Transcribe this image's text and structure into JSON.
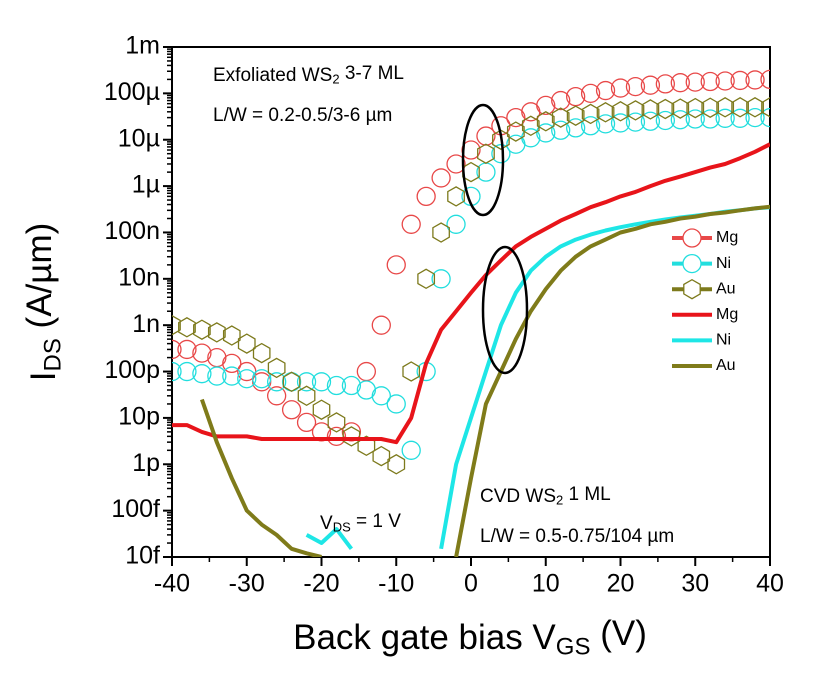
{
  "chart_data": {
    "type": "line",
    "log_y": true,
    "y_label": [
      "I",
      "DS",
      " (A/µm)"
    ],
    "x_label": [
      "Back gate bias V",
      "GS",
      " (V)"
    ],
    "annotations": [
      [
        "Exfoliated WS",
        "2",
        " 3-7 ML"
      ],
      [
        "L/W = 0.2-0.5/3-6 µm"
      ],
      [
        "CVD WS",
        "2",
        " 1 ML"
      ],
      [
        "L/W = 0.5-0.75/104 µm"
      ],
      [
        "V",
        "DS",
        " = 1 V"
      ]
    ],
    "xlim": [
      -40,
      40
    ],
    "xticks": [
      -40,
      -30,
      -20,
      -10,
      0,
      10,
      20,
      30,
      40
    ],
    "ylim": [
      1e-14,
      0.001
    ],
    "yticks": [
      {
        "value": 0.001,
        "label": "1m"
      },
      {
        "value": 0.0001,
        "label": "100µ"
      },
      {
        "value": 1e-05,
        "label": "10µ"
      },
      {
        "value": 1e-06,
        "label": "1µ"
      },
      {
        "value": 1e-07,
        "label": "100n"
      },
      {
        "value": 1e-08,
        "label": "10n"
      },
      {
        "value": 1e-09,
        "label": "1n"
      },
      {
        "value": 1e-10,
        "label": "100p"
      },
      {
        "value": 1e-11,
        "label": "10p"
      },
      {
        "value": 1e-12,
        "label": "1p"
      },
      {
        "value": 1e-13,
        "label": "100f"
      },
      {
        "value": 1e-14,
        "label": "10f"
      }
    ],
    "legend": "right",
    "x": [
      -40,
      -38,
      -36,
      -34,
      -32,
      -30,
      -28,
      -26,
      -24,
      -22,
      -20,
      -18,
      -16,
      -14,
      -12,
      -10,
      -8,
      -6,
      -4,
      -2,
      0,
      2,
      4,
      6,
      8,
      10,
      12,
      14,
      16,
      18,
      20,
      22,
      24,
      26,
      28,
      30,
      32,
      34,
      36,
      38,
      40
    ],
    "series": [
      {
        "name": "Mg",
        "color": "#e84848",
        "style": "open-circle",
        "values": [
          3e-10,
          3e-10,
          2.5e-10,
          2e-10,
          1.5e-10,
          1e-10,
          6e-11,
          3e-11,
          1.5e-11,
          8e-12,
          5e-12,
          4e-12,
          5e-12,
          1e-10,
          1e-09,
          2e-08,
          1.5e-07,
          6e-07,
          1.5e-06,
          3e-06,
          6e-06,
          1.2e-05,
          2e-05,
          3e-05,
          4e-05,
          5.5e-05,
          7e-05,
          8.5e-05,
          0.0001,
          0.000115,
          0.00013,
          0.00014,
          0.00015,
          0.00016,
          0.00017,
          0.000175,
          0.00018,
          0.000185,
          0.00019,
          0.000195,
          0.0002
        ]
      },
      {
        "name": "Ni",
        "color": "#22dede",
        "style": "open-circle",
        "values": [
          1e-10,
          1e-10,
          9e-11,
          8e-11,
          8e-11,
          7e-11,
          7e-11,
          6e-11,
          6e-11,
          6e-11,
          6e-11,
          5e-11,
          5e-11,
          4e-11,
          3e-11,
          2e-11,
          2e-12,
          1e-10,
          1e-08,
          1.5e-07,
          6e-07,
          2e-06,
          5e-06,
          8e-06,
          1.1e-05,
          1.4e-05,
          1.6e-05,
          1.8e-05,
          2e-05,
          2.2e-05,
          2.3e-05,
          2.4e-05,
          2.5e-05,
          2.6e-05,
          2.7e-05,
          2.8e-05,
          2.8e-05,
          2.9e-05,
          2.9e-05,
          3e-05,
          3e-05
        ]
      },
      {
        "name": "Au",
        "color": "#7d7a1c",
        "style": "open-hexagon",
        "values": [
          1e-09,
          9e-10,
          8e-10,
          7e-10,
          6e-10,
          4e-10,
          2.5e-10,
          1.2e-10,
          6e-11,
          3e-11,
          1.5e-11,
          8e-12,
          4e-12,
          2.5e-12,
          1.5e-12,
          1e-12,
          1e-10,
          1e-08,
          1e-07,
          6e-07,
          2e-06,
          5e-06,
          1e-05,
          1.5e-05,
          2e-05,
          2.5e-05,
          3e-05,
          3.3e-05,
          3.6e-05,
          3.9e-05,
          4.1e-05,
          4.3e-05,
          4.5e-05,
          4.6e-05,
          4.7e-05,
          4.8e-05,
          4.9e-05,
          5e-05,
          5e-05,
          5e-05,
          5e-05
        ]
      },
      {
        "name": "Mg",
        "color": "#e8141a",
        "style": "line",
        "values": [
          7e-12,
          7e-12,
          5e-12,
          4e-12,
          4e-12,
          4e-12,
          3.5e-12,
          3.5e-12,
          3.5e-12,
          3.5e-12,
          3.5e-12,
          3.5e-12,
          3.5e-12,
          3.5e-12,
          3.5e-12,
          3e-12,
          1e-11,
          1.5e-10,
          8e-10,
          2e-09,
          5e-09,
          1.2e-08,
          2.5e-08,
          5e-08,
          8e-08,
          1.2e-07,
          1.8e-07,
          2.5e-07,
          3.5e-07,
          4.5e-07,
          6e-07,
          7.5e-07,
          1e-06,
          1.3e-06,
          1.6e-06,
          2e-06,
          2.5e-06,
          3e-06,
          4e-06,
          5.5e-06,
          8e-06
        ]
      },
      {
        "name": "Ni",
        "color": "#1ee6e6",
        "style": "line",
        "values": [
          null,
          null,
          null,
          null,
          null,
          null,
          null,
          null,
          null,
          3e-14,
          2e-14,
          4e-14,
          1.5e-14,
          null,
          null,
          null,
          null,
          null,
          1.5e-14,
          1e-12,
          1e-11,
          1e-10,
          1e-09,
          5e-09,
          1.5e-08,
          3e-08,
          5e-08,
          7e-08,
          9e-08,
          1.1e-07,
          1.3e-07,
          1.5e-07,
          1.7e-07,
          1.9e-07,
          2.1e-07,
          2.3e-07,
          2.5e-07,
          2.8e-07,
          3e-07,
          3.3e-07,
          3.5e-07
        ]
      },
      {
        "name": "Au",
        "color": "#7f7b1a",
        "style": "line",
        "values": [
          null,
          null,
          2.5e-11,
          3e-12,
          5e-13,
          1e-13,
          5e-14,
          3e-14,
          1.5e-14,
          1.2e-14,
          1e-14,
          null,
          null,
          null,
          null,
          null,
          null,
          null,
          null,
          1e-14,
          5e-13,
          2e-11,
          1e-10,
          5e-10,
          2e-09,
          6e-09,
          1.5e-08,
          3e-08,
          5e-08,
          7e-08,
          1e-07,
          1.2e-07,
          1.5e-07,
          1.7e-07,
          2e-07,
          2.2e-07,
          2.5e-07,
          2.7e-07,
          3e-07,
          3.3e-07,
          3.6e-07
        ]
      }
    ]
  }
}
